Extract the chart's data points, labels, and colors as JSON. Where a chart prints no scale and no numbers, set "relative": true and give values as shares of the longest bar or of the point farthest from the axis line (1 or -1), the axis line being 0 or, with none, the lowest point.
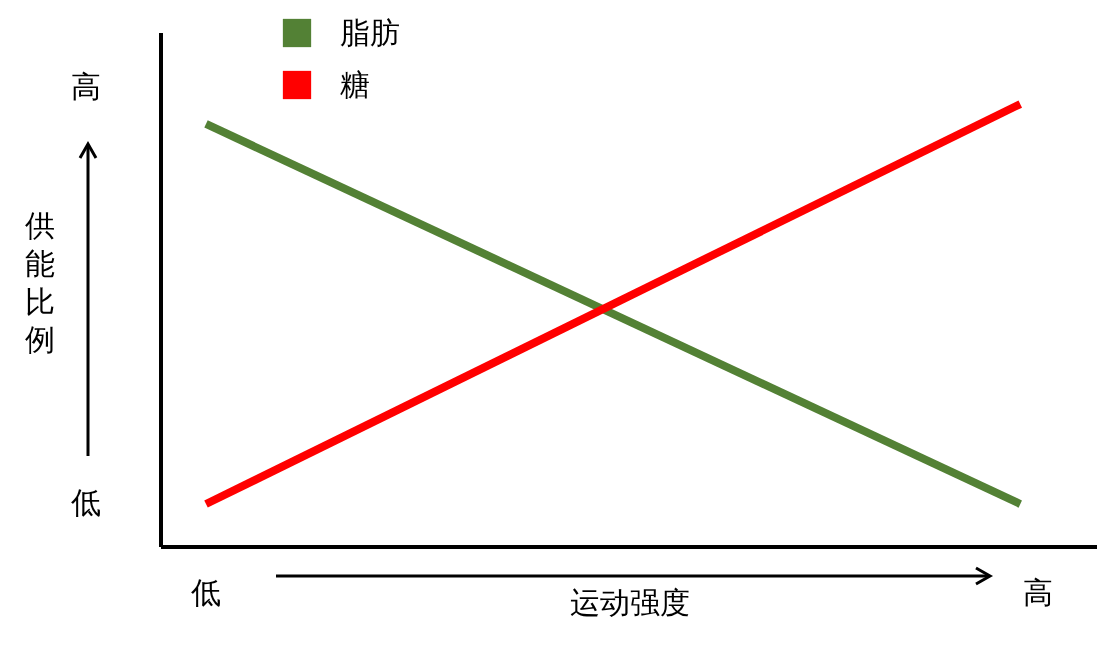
{
  "chart_data": {
    "type": "line",
    "relative": true,
    "xlabel": "运动强度",
    "ylabel": "供能比例",
    "categories": [
      null,
      null
    ],
    "series": [
      {
        "name": "脂肪",
        "color": "#538135",
        "values": [
          0.955,
          0.095
        ]
      },
      {
        "name": "糖",
        "color": "#ff0000",
        "values": [
          0.095,
          1
        ]
      }
    ],
    "annotations": [
      "高",
      "低",
      "低",
      "高"
    ],
    "legend": "top left",
    "marker": "none",
    "line_style": "solid"
  }
}
